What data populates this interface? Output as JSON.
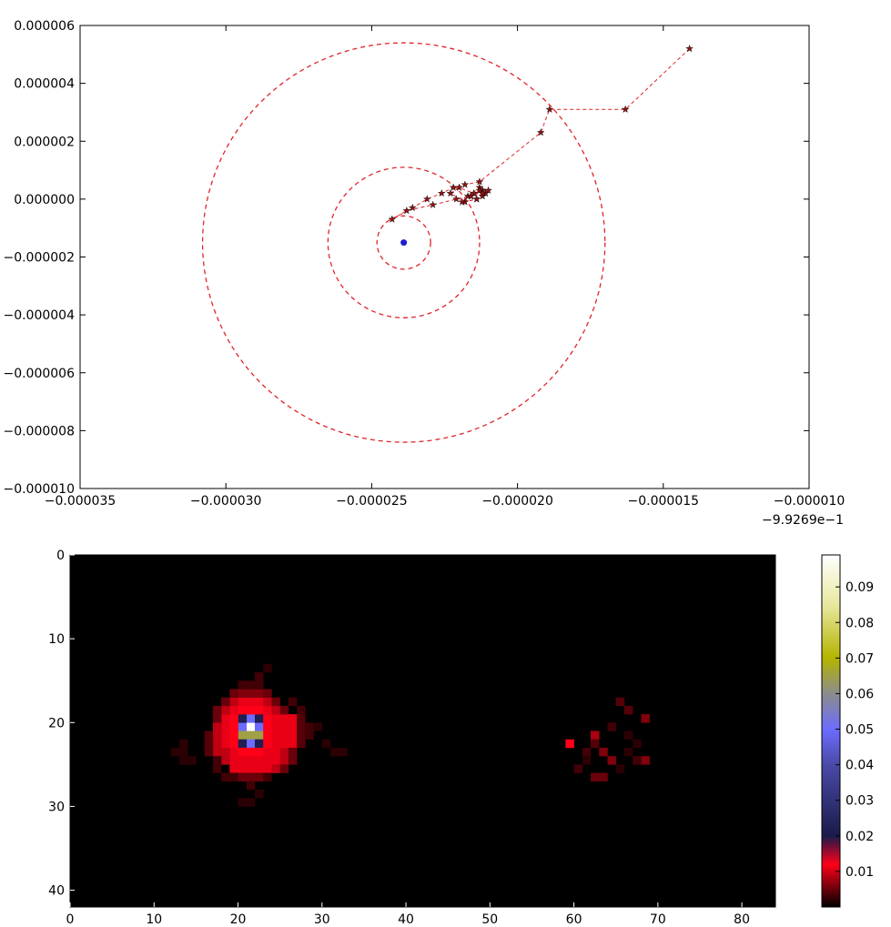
{
  "chart_data": [
    {
      "type": "scatter",
      "xlim": [
        -3.5e-05,
        -1e-05
      ],
      "ylim": [
        -1e-05,
        6e-06
      ],
      "x_offset_label": "−9.9269e−1",
      "x_tick_labels": [
        "−0.000035",
        "−0.000030",
        "−0.000025",
        "−0.000020",
        "−0.000015",
        "−0.000010"
      ],
      "x_tick_values": [
        -3.5e-05,
        -3e-05,
        -2.5e-05,
        -2e-05,
        -1.5e-05,
        -1e-05
      ],
      "y_tick_labels": [
        "0.000006",
        "0.000004",
        "0.000002",
        "0.000000",
        "−0.000002",
        "−0.000004",
        "−0.000006",
        "−0.000008",
        "−0.000010"
      ],
      "y_tick_values": [
        6e-06,
        4e-06,
        2e-06,
        0.0,
        -2e-06,
        -4e-06,
        -6e-06,
        -8e-06,
        -1e-05
      ],
      "center": {
        "x": -2.39e-05,
        "y": -1.5e-06,
        "color": "#1f1fcf"
      },
      "circle_radii": [
        9.2e-07,
        2.6e-06,
        6.9e-06
      ],
      "circle_color": "#e0242a",
      "track": {
        "color": "#e0242a",
        "marker_color": "#8b1414",
        "x": [
          -1.41e-05,
          -1.63e-05,
          -1.89e-05,
          -1.92e-05,
          -2.13e-05,
          -2.18e-05,
          -2.22e-05,
          -2.26e-05,
          -2.31e-05,
          -2.36e-05,
          -2.43e-05,
          -2.38e-05,
          -2.29e-05,
          -2.21e-05,
          -2.16e-05,
          -2.12e-05,
          -2.11e-05,
          -2.14e-05,
          -2.18e-05,
          -2.23e-05,
          -2.2e-05,
          -2.15e-05,
          -2.12e-05,
          -2.1e-05,
          -2.13e-05,
          -2.17e-05,
          -2.19e-05,
          -2.14e-05,
          -2.11e-05,
          -2.13e-05,
          -2.16e-05,
          -2.12e-05
        ],
        "y": [
          5.2e-06,
          3.1e-06,
          3.1e-06,
          2.3e-06,
          6e-07,
          5e-07,
          4e-07,
          2e-07,
          0.0,
          -3e-07,
          -7e-07,
          -4e-07,
          -2e-07,
          0.0,
          1e-07,
          3e-07,
          2e-07,
          0.0,
          -1e-07,
          2e-07,
          4e-07,
          2e-07,
          1e-07,
          3e-07,
          4e-07,
          1e-07,
          -1e-07,
          0.0,
          2e-07,
          3e-07,
          1e-07,
          2e-07
        ]
      }
    },
    {
      "type": "heatmap",
      "ncols": 84,
      "nrows": 42,
      "x_tick_labels": [
        "0",
        "10",
        "20",
        "30",
        "40",
        "50",
        "60",
        "70",
        "80"
      ],
      "x_tick_values": [
        0,
        10,
        20,
        30,
        40,
        50,
        60,
        70,
        80
      ],
      "y_tick_labels": [
        "0",
        "10",
        "20",
        "30",
        "40"
      ],
      "y_tick_values": [
        0,
        10,
        20,
        30,
        40
      ],
      "colorbar": {
        "min": 0.0,
        "max": 0.099,
        "tick_labels": [
          "0.01",
          "0.02",
          "0.03",
          "0.04",
          "0.05",
          "0.06",
          "0.07",
          "0.08",
          "0.09"
        ],
        "tick_values": [
          0.01,
          0.02,
          0.03,
          0.04,
          0.05,
          0.06,
          0.07,
          0.08,
          0.09
        ],
        "stops": [
          {
            "v": 0.0,
            "color": "#000000"
          },
          {
            "v": 0.012,
            "color": "#ff0018"
          },
          {
            "v": 0.02,
            "color": "#1a1a4a"
          },
          {
            "v": 0.04,
            "color": "#4a4aa8"
          },
          {
            "v": 0.05,
            "color": "#6c6cff"
          },
          {
            "v": 0.06,
            "color": "#8c8c8c"
          },
          {
            "v": 0.07,
            "color": "#b4b400"
          },
          {
            "v": 0.085,
            "color": "#e8e8a0"
          },
          {
            "v": 0.099,
            "color": "#ffffff"
          }
        ]
      },
      "cells": [
        [
          20,
          21,
          0.099
        ],
        [
          21,
          21,
          0.065
        ],
        [
          20,
          20,
          0.05
        ],
        [
          20,
          22,
          0.05
        ],
        [
          21,
          20,
          0.065
        ],
        [
          21,
          22,
          0.065
        ],
        [
          22,
          21,
          0.05
        ],
        [
          19,
          21,
          0.05
        ],
        [
          19,
          20,
          0.022
        ],
        [
          19,
          22,
          0.022
        ],
        [
          22,
          20,
          0.022
        ],
        [
          22,
          22,
          0.022
        ],
        [
          18,
          20,
          0.012
        ],
        [
          18,
          21,
          0.012
        ],
        [
          18,
          22,
          0.012
        ],
        [
          19,
          19,
          0.012
        ],
        [
          20,
          19,
          0.012
        ],
        [
          21,
          19,
          0.012
        ],
        [
          22,
          19,
          0.012
        ],
        [
          19,
          23,
          0.012
        ],
        [
          20,
          23,
          0.012
        ],
        [
          21,
          23,
          0.012
        ],
        [
          22,
          23,
          0.012
        ],
        [
          23,
          20,
          0.012
        ],
        [
          23,
          21,
          0.012
        ],
        [
          23,
          22,
          0.012
        ],
        [
          17,
          20,
          0.011
        ],
        [
          17,
          21,
          0.011
        ],
        [
          17,
          22,
          0.011
        ],
        [
          18,
          19,
          0.011
        ],
        [
          18,
          23,
          0.011
        ],
        [
          23,
          19,
          0.011
        ],
        [
          23,
          23,
          0.011
        ],
        [
          24,
          19,
          0.011
        ],
        [
          24,
          20,
          0.011
        ],
        [
          24,
          21,
          0.011
        ],
        [
          24,
          22,
          0.011
        ],
        [
          24,
          23,
          0.011
        ],
        [
          25,
          20,
          0.011
        ],
        [
          25,
          21,
          0.011
        ],
        [
          25,
          22,
          0.011
        ],
        [
          20,
          24,
          0.011
        ],
        [
          21,
          24,
          0.011
        ],
        [
          22,
          24,
          0.011
        ],
        [
          19,
          24,
          0.011
        ],
        [
          20,
          18,
          0.011
        ],
        [
          21,
          18,
          0.011
        ],
        [
          22,
          18,
          0.011
        ],
        [
          19,
          18,
          0.011
        ],
        [
          20,
          25,
          0.011
        ],
        [
          21,
          25,
          0.011
        ],
        [
          22,
          25,
          0.011
        ],
        [
          19,
          25,
          0.011
        ],
        [
          20,
          26,
          0.011
        ],
        [
          21,
          26,
          0.011
        ],
        [
          22,
          26,
          0.011
        ],
        [
          19,
          26,
          0.011
        ],
        [
          24,
          24,
          0.011
        ],
        [
          23,
          24,
          0.011
        ],
        [
          25,
          23,
          0.011
        ],
        [
          25,
          19,
          0.011
        ],
        [
          20,
          17,
          0.009
        ],
        [
          21,
          17,
          0.009
        ],
        [
          22,
          17,
          0.009
        ],
        [
          23,
          17,
          0.009
        ],
        [
          18,
          18,
          0.009
        ],
        [
          17,
          19,
          0.009
        ],
        [
          17,
          23,
          0.009
        ],
        [
          18,
          24,
          0.009
        ],
        [
          23,
          25,
          0.009
        ],
        [
          24,
          25,
          0.009
        ],
        [
          25,
          24,
          0.009
        ],
        [
          24,
          18,
          0.009
        ],
        [
          23,
          18,
          0.009
        ],
        [
          16,
          20,
          0.006
        ],
        [
          16,
          21,
          0.006
        ],
        [
          16,
          22,
          0.006
        ],
        [
          16,
          19,
          0.005
        ],
        [
          16,
          23,
          0.005
        ],
        [
          17,
          18,
          0.005
        ],
        [
          17,
          24,
          0.005
        ],
        [
          18,
          17,
          0.005
        ],
        [
          18,
          25,
          0.005
        ],
        [
          19,
          17,
          0.005
        ],
        [
          19,
          27,
          0.004
        ],
        [
          20,
          27,
          0.004
        ],
        [
          21,
          27,
          0.004
        ],
        [
          22,
          27,
          0.004
        ],
        [
          23,
          26,
          0.005
        ],
        [
          24,
          26,
          0.005
        ],
        [
          25,
          25,
          0.005
        ],
        [
          26,
          21,
          0.005
        ],
        [
          26,
          22,
          0.005
        ],
        [
          26,
          20,
          0.005
        ],
        [
          22,
          16,
          0.004
        ],
        [
          23,
          16,
          0.004
        ],
        [
          21,
          16,
          0.004
        ],
        [
          15,
          21,
          0.003
        ],
        [
          15,
          22,
          0.003
        ],
        [
          14,
          22,
          0.003
        ],
        [
          13,
          23,
          0.002
        ],
        [
          15,
          20,
          0.003
        ],
        [
          20,
          28,
          0.003
        ],
        [
          21,
          28,
          0.003
        ],
        [
          20,
          29,
          0.002
        ],
        [
          22,
          30,
          0.002
        ],
        [
          23,
          31,
          0.002
        ],
        [
          23,
          32,
          0.002
        ],
        [
          22,
          13,
          0.002
        ],
        [
          23,
          13,
          0.002
        ],
        [
          24,
          13,
          0.002
        ],
        [
          23,
          12,
          0.002
        ],
        [
          24,
          14,
          0.002
        ],
        [
          26,
          19,
          0.003
        ],
        [
          26,
          23,
          0.003
        ],
        [
          27,
          21,
          0.003
        ],
        [
          28,
          22,
          0.002
        ],
        [
          29,
          20,
          0.002
        ],
        [
          29,
          21,
          0.002
        ],
        [
          24,
          17,
          0.003
        ],
        [
          25,
          17,
          0.003
        ],
        [
          26,
          18,
          0.003
        ],
        [
          18,
          27,
          0.003
        ],
        [
          17,
          26,
          0.003
        ],
        [
          22,
          59,
          0.012
        ],
        [
          21,
          62,
          0.008
        ],
        [
          23,
          63,
          0.006
        ],
        [
          24,
          64,
          0.006
        ],
        [
          24,
          68,
          0.006
        ],
        [
          26,
          62,
          0.005
        ],
        [
          26,
          63,
          0.005
        ],
        [
          19,
          68,
          0.006
        ],
        [
          17,
          65,
          0.004
        ],
        [
          18,
          66,
          0.004
        ],
        [
          22,
          62,
          0.004
        ],
        [
          23,
          61,
          0.003
        ],
        [
          24,
          67,
          0.003
        ],
        [
          25,
          60,
          0.003
        ],
        [
          20,
          64,
          0.003
        ],
        [
          21,
          66,
          0.002
        ],
        [
          22,
          67,
          0.002
        ],
        [
          25,
          65,
          0.002
        ],
        [
          23,
          66,
          0.002
        ],
        [
          24,
          61,
          0.002
        ]
      ]
    }
  ]
}
